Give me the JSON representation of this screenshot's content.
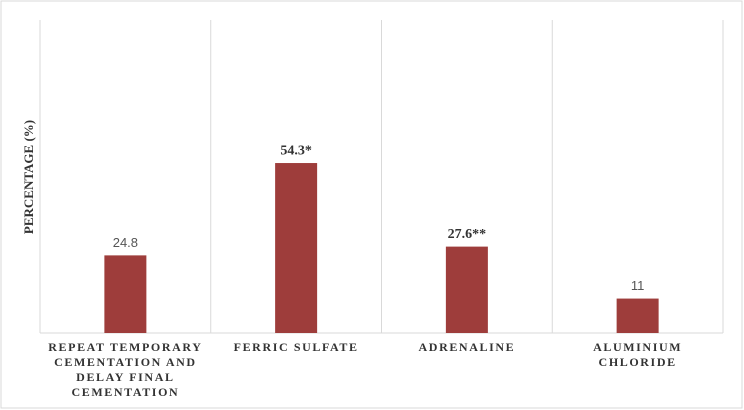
{
  "chart_data": {
    "type": "bar",
    "y_label": "PERCENTAGE (%)",
    "categories": [
      "REPEAT TEMPORARY CEMENTATION AND DELAY FINAL CEMENTATION",
      "FERRIC SULFATE",
      "ADRENALINE",
      "ALUMINIUM CHLORIDE"
    ],
    "values": [
      24.8,
      54.3,
      27.6,
      11
    ],
    "value_labels": [
      "24.8",
      "54.3*",
      "27.6**",
      "11"
    ],
    "color": "#9e3d3b",
    "ylim": [
      0,
      100
    ],
    "grid": true
  }
}
